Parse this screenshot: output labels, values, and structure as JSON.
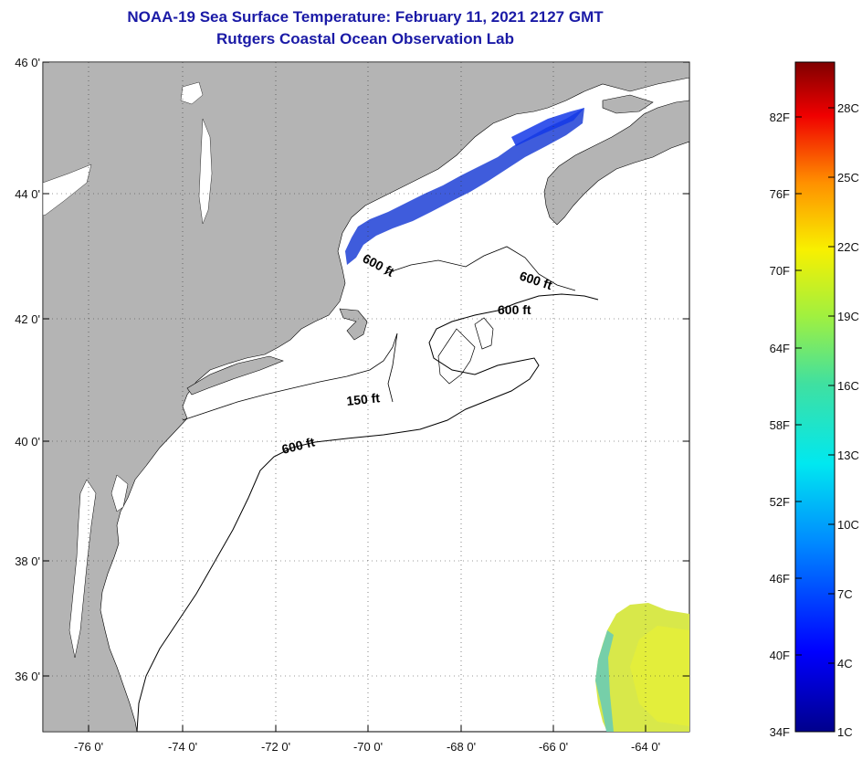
{
  "header": {
    "title": "NOAA-19 Sea Surface Temperature:  February 11, 2021 2127 GMT",
    "subtitle": "Rutgers Coastal Ocean Observation Lab"
  },
  "map": {
    "lat_ticks": [
      "46 0'",
      "44 0'",
      "42 0'",
      "40 0'",
      "38 0'",
      "36 0'"
    ],
    "lon_ticks": [
      "-76 0'",
      "-74 0'",
      "-72 0'",
      "-70 0'",
      "-68 0'",
      "-66 0'",
      "-64 0'"
    ],
    "contours": [
      {
        "label": "600 ft"
      },
      {
        "label": "600 ft"
      },
      {
        "label": "600 ft"
      },
      {
        "label": "150 ft"
      },
      {
        "label": "600 ft"
      }
    ],
    "colors": {
      "land": "#b4b4b4",
      "water": "#ffffff",
      "cold_sst": "#2a4ad8",
      "warm_sst": "#d8e84a"
    }
  },
  "colorbar": {
    "fahrenheit": [
      "82F",
      "76F",
      "70F",
      "64F",
      "58F",
      "52F",
      "46F",
      "40F",
      "34F"
    ],
    "celsius": [
      "28C",
      "25C",
      "22C",
      "19C",
      "16C",
      "13C",
      "10C",
      "7C",
      "4C",
      "1C"
    ]
  }
}
